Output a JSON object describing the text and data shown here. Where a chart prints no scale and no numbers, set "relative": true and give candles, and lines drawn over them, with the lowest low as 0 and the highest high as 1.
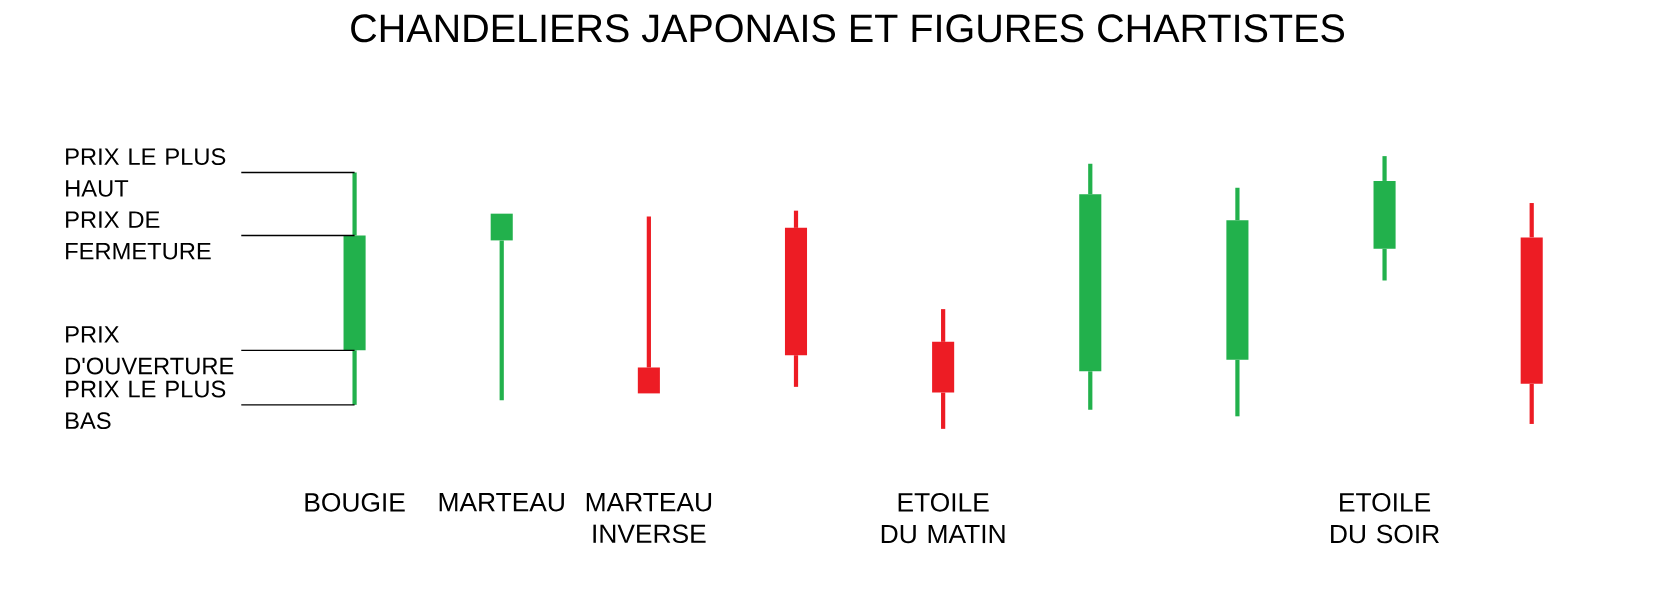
{
  "chart_data": {
    "type": "candlestick",
    "title": "CHANDELIERS JAPONAIS ET FIGURES CHARTISTES",
    "relative": true,
    "categories": [
      "BOUGIE",
      "MARTEAU",
      "MARTEAU INVERSE",
      null,
      "ETOILE DU MATIN",
      null,
      null,
      "ETOILE DU SOIR",
      null
    ],
    "ohlc": [
      [
        0.288,
        0.94,
        0.088,
        0.709
      ],
      [
        0.691,
        0.789,
        0.105,
        0.789
      ],
      [
        0.225,
        0.779,
        0.13,
        0.13
      ],
      [
        0.737,
        0.8,
        0.154,
        0.27
      ],
      [
        0.319,
        0.439,
        0.0,
        0.133
      ],
      [
        0.211,
        0.972,
        0.07,
        0.86
      ],
      [
        0.253,
        0.884,
        0.046,
        0.765
      ],
      [
        0.66,
        1.0,
        0.544,
        0.909
      ],
      [
        0.702,
        0.828,
        0.018,
        0.165
      ]
    ],
    "colors": [
      "#22b14c",
      "#22b14c",
      "#ed1c24",
      "#ed1c24",
      "#ed1c24",
      "#22b14c",
      "#22b14c",
      "#22b14c",
      "#ed1c24"
    ],
    "annotations": [
      {
        "text": "PRIX LE PLUS HAUT",
        "x": "BOUGIE",
        "y": 0.94
      },
      {
        "text": "PRIX DE FERMETURE",
        "x": "BOUGIE",
        "y": 0.709
      },
      {
        "text": "PRIX D'OUVERTURE",
        "x": "BOUGIE",
        "y": 0.288
      },
      {
        "text": "PRIX LE PLUS BAS",
        "x": "BOUGIE",
        "y": 0.088
      }
    ]
  }
}
